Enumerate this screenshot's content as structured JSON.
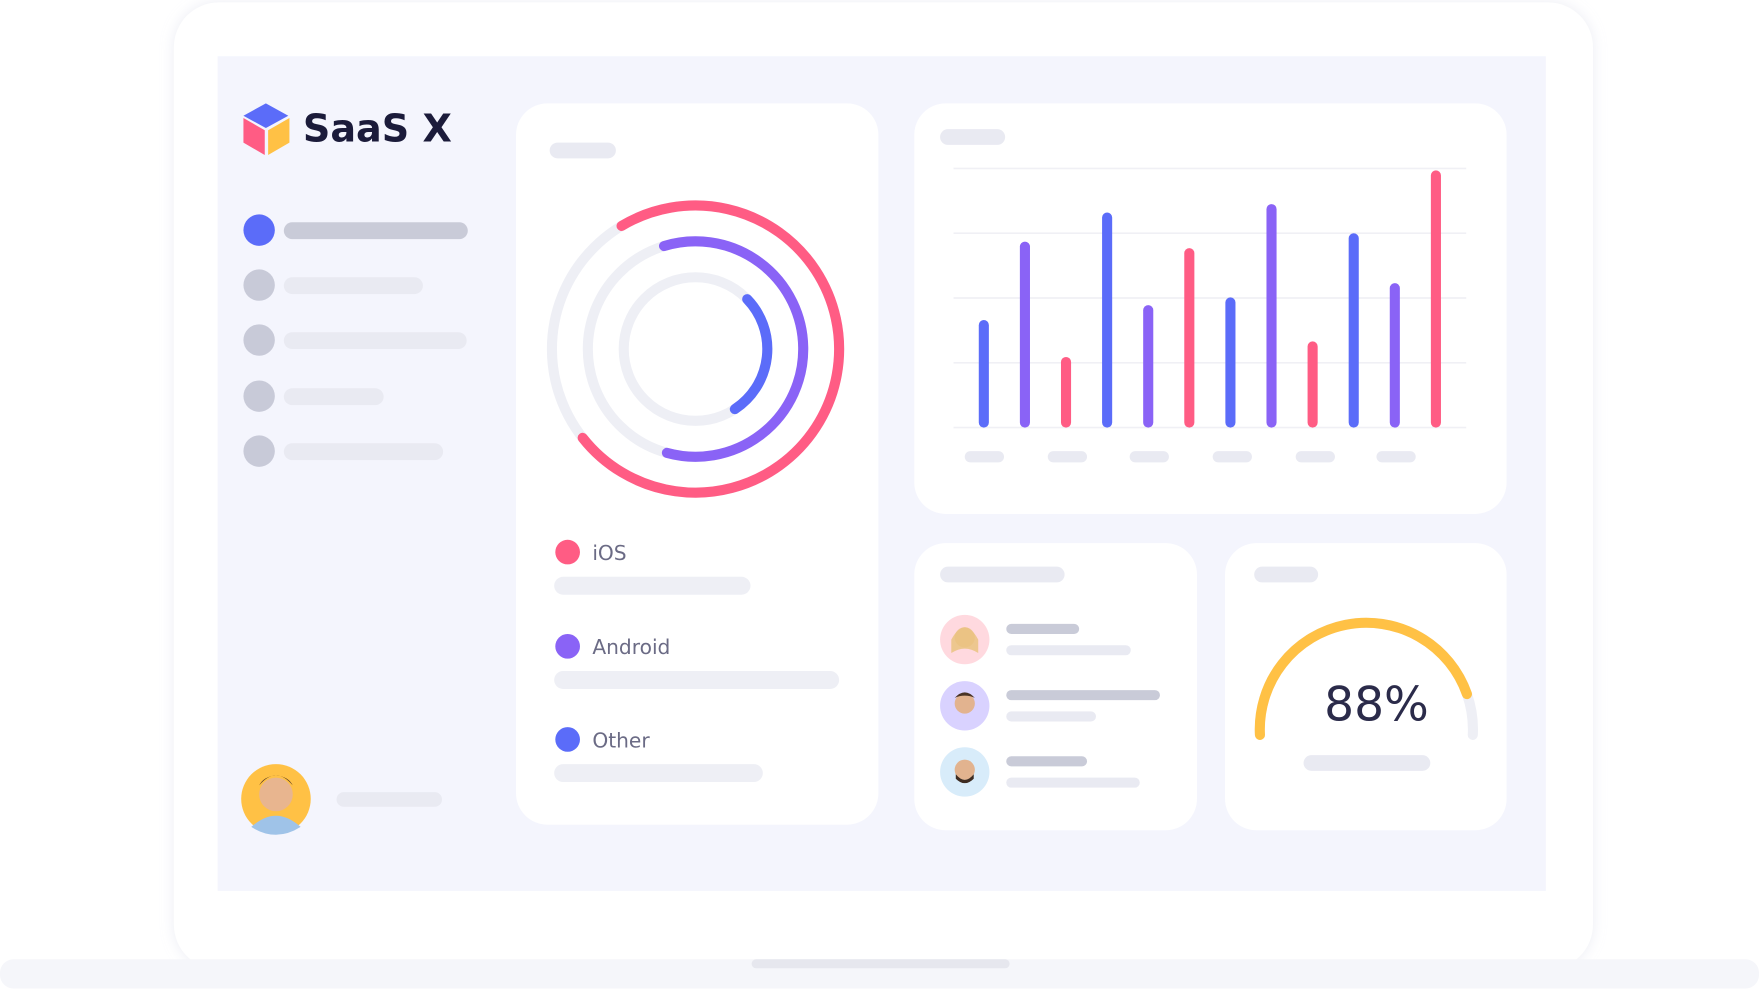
{
  "app": {
    "name": "SaaS X"
  },
  "rings": {
    "series": [
      {
        "name": "iOS",
        "color": "#ff5c84",
        "value": 73
      },
      {
        "name": "Android",
        "color": "#8a63f6",
        "value": 59
      },
      {
        "name": "Other",
        "color": "#5b6cf9",
        "value": 28
      }
    ]
  },
  "chart_data": {
    "type": "bar",
    "values": [
      1.66,
      2.87,
      1.09,
      3.32,
      1.89,
      2.77,
      2.01,
      3.45,
      1.33,
      3.0,
      2.23,
      3.97
    ],
    "colors": [
      "#5b6cf9",
      "#8a63f6",
      "#ff5c84",
      "#5b6cf9",
      "#8a63f6",
      "#ff5c84",
      "#5b6cf9",
      "#8a63f6",
      "#ff5c84",
      "#5b6cf9",
      "#8a63f6",
      "#ff5c84"
    ],
    "ylim": [
      0,
      4
    ],
    "yticks": [
      0,
      1,
      2,
      3,
      4
    ],
    "grid": true
  },
  "gauge": {
    "value": 88,
    "label": "88%",
    "color": "#ffc145"
  }
}
